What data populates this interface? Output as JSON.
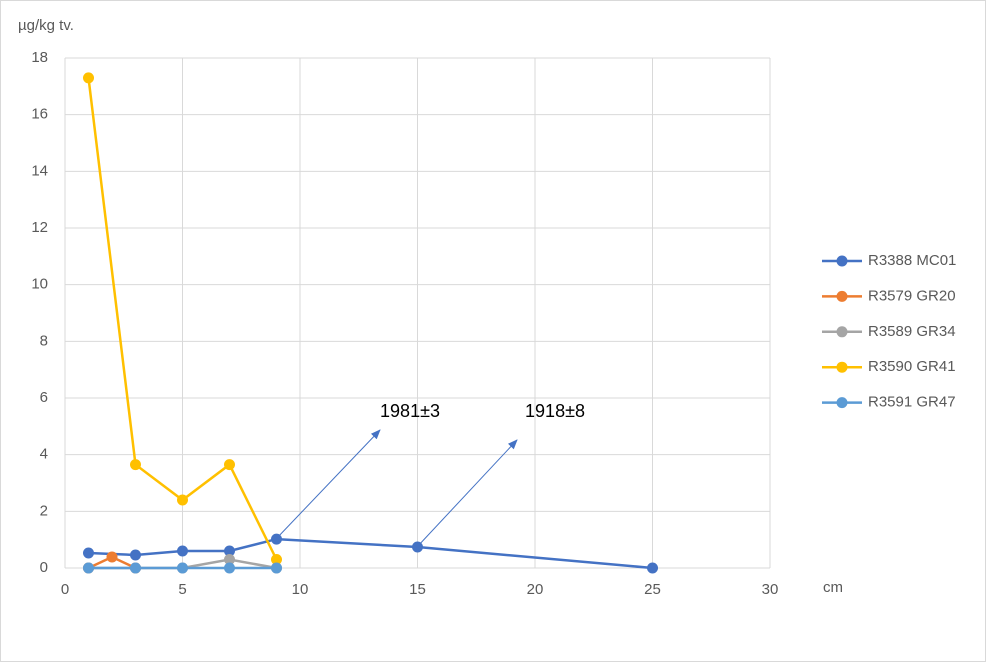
{
  "chart_data": {
    "type": "line",
    "y_label": "µg/kg tv.",
    "x_label": "cm",
    "xlim": [
      0,
      30
    ],
    "xticks": [
      0,
      5,
      10,
      15,
      20,
      25,
      30
    ],
    "ylim": [
      0,
      18
    ],
    "yticks": [
      0,
      2,
      4,
      6,
      8,
      10,
      12,
      14,
      16,
      18
    ],
    "grid": true,
    "legend": "right",
    "series": [
      {
        "name": "R3388 MC01",
        "color": "#4472c4",
        "x": [
          1,
          3,
          5,
          7,
          9,
          15,
          25
        ],
        "values": [
          0.53,
          0.46,
          0.6,
          0.6,
          1.02,
          0.74,
          0
        ]
      },
      {
        "name": "R3579 GR20",
        "color": "#ed7d31",
        "x": [
          1,
          2,
          3
        ],
        "values": [
          0,
          0.39,
          0
        ]
      },
      {
        "name": "R3589 GR34",
        "color": "#a5a5a5",
        "x": [
          1,
          3,
          5,
          7,
          9
        ],
        "values": [
          0,
          0,
          0,
          0.3,
          0
        ]
      },
      {
        "name": "R3590 GR41",
        "color": "#ffc000",
        "x": [
          1,
          3,
          5,
          7,
          9
        ],
        "values": [
          17.3,
          3.65,
          2.4,
          3.65,
          0.3
        ]
      },
      {
        "name": "R3591 GR47",
        "color": "#5b9bd5",
        "x": [
          1,
          3,
          5,
          7,
          9
        ],
        "values": [
          0,
          0,
          0,
          0,
          0
        ]
      }
    ],
    "annotations": [
      "1981±3",
      "1918±8"
    ]
  }
}
